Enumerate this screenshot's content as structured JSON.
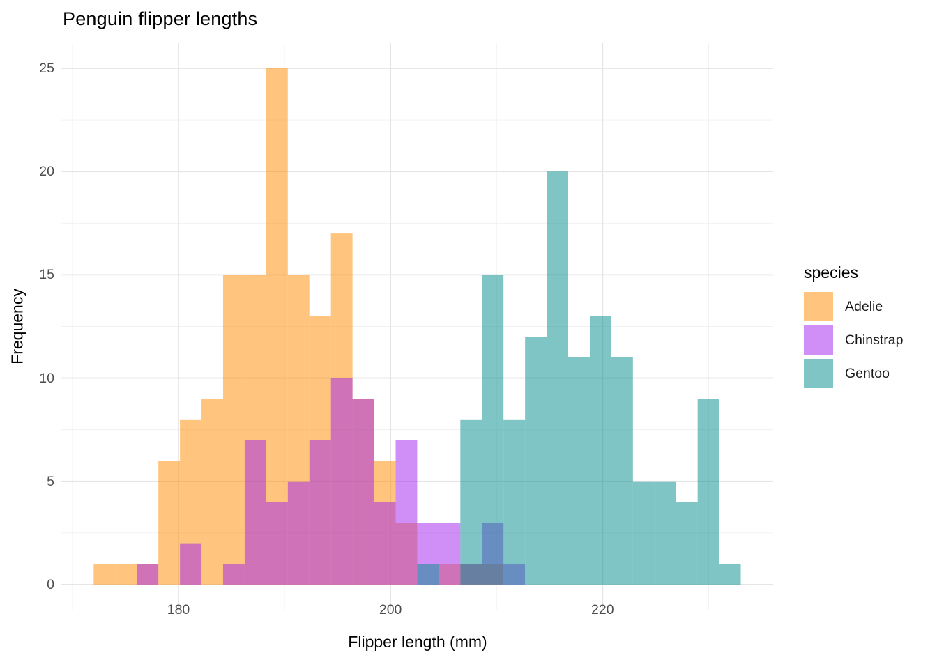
{
  "title": "Penguin flipper lengths",
  "chart_data": {
    "type": "histogram",
    "title": "Penguin flipper lengths",
    "xlabel": "Flipper length (mm)",
    "ylabel": "Frequency",
    "x_ticks": [
      180,
      200,
      220
    ],
    "x_minor_ticks": [
      170,
      190,
      210,
      230
    ],
    "y_ticks": [
      0,
      5,
      10,
      15,
      20,
      25
    ],
    "ylim": [
      0,
      25
    ],
    "xlim_mm": [
      169,
      236
    ],
    "bin_start_mm": 172,
    "bin_width_mm": 2.0345,
    "n_bins": 30,
    "alpha": 0.5,
    "position": "identity",
    "grid": "on",
    "legend_position": "right",
    "legend_title": "species",
    "series": [
      {
        "name": "Adelie",
        "color": "#FF8C00",
        "counts": [
          1,
          1,
          1,
          6,
          8,
          9,
          15,
          15,
          25,
          15,
          13,
          17,
          9,
          6,
          3,
          0,
          1,
          1,
          1,
          0,
          0,
          0,
          0,
          0,
          0,
          0,
          0,
          0,
          0,
          0
        ]
      },
      {
        "name": "Chinstrap",
        "color": "#A020F0",
        "counts": [
          0,
          0,
          1,
          0,
          2,
          0,
          1,
          7,
          4,
          5,
          7,
          10,
          9,
          4,
          7,
          3,
          3,
          1,
          3,
          1,
          0,
          0,
          0,
          0,
          0,
          0,
          0,
          0,
          0,
          0
        ]
      },
      {
        "name": "Gentoo",
        "color": "#008B8B",
        "counts": [
          0,
          0,
          0,
          0,
          0,
          0,
          0,
          0,
          0,
          0,
          0,
          0,
          0,
          0,
          0,
          1,
          0,
          8,
          15,
          8,
          12,
          20,
          11,
          13,
          11,
          5,
          5,
          4,
          9,
          1
        ]
      }
    ]
  },
  "style": {
    "grid_major_color": "#E5E5E5",
    "grid_minor_color": "#F0F0F0",
    "tick_label_color": "#4D4D4D",
    "background": "#FFFFFF"
  }
}
